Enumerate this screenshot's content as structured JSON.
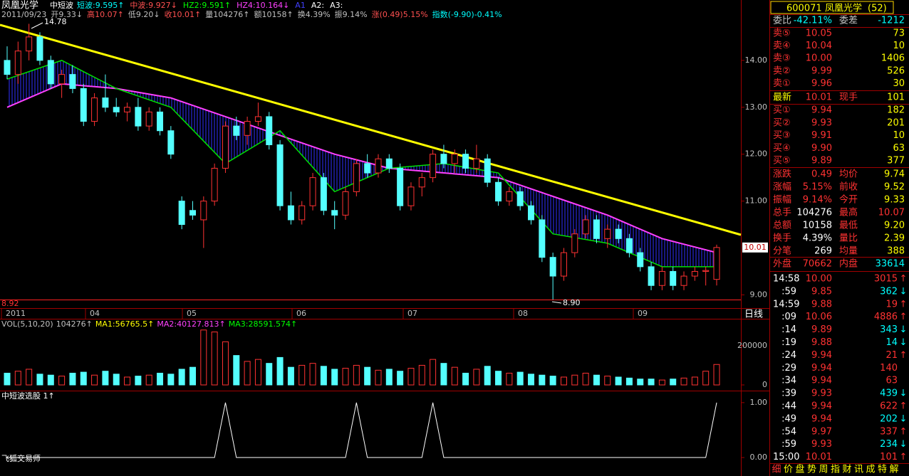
{
  "header": {
    "name": "凤凰光学",
    "indicator": "中短波",
    "items": [
      {
        "text": "短波:9.595↑",
        "color": "#00ffff"
      },
      {
        "text": "中波:9.927↓",
        "color": "#ff5050"
      },
      {
        "text": "HZ2:9.591↑",
        "color": "#00ff00"
      },
      {
        "text": "HZ4:10.164↓",
        "color": "#ff40ff"
      },
      {
        "text": "A1",
        "color": "#4040ff"
      },
      {
        "text": "A2:",
        "color": "#ffffff"
      },
      {
        "text": "A3:",
        "color": "#ffffff"
      }
    ],
    "row2": [
      {
        "text": "2011/09/23",
        "color": "#c0c0c0"
      },
      {
        "text": "开9.33↓",
        "color": "#c0c0c0"
      },
      {
        "text": "高10.07↑",
        "color": "#ff5050"
      },
      {
        "text": "低9.20↓",
        "color": "#c0c0c0"
      },
      {
        "text": "收10.01↑",
        "color": "#ff5050"
      },
      {
        "text": "量104276↑",
        "color": "#c0c0c0"
      },
      {
        "text": "额10158↑",
        "color": "#c0c0c0"
      },
      {
        "text": "换4.39%",
        "color": "#c0c0c0"
      },
      {
        "text": "振9.14%",
        "color": "#c0c0c0"
      },
      {
        "text": "涨(0.49)5.15%",
        "color": "#ff5050"
      },
      {
        "text": "指数(-9.90)-0.41%",
        "color": "#00ffff"
      }
    ]
  },
  "price_chart": {
    "ylim": [
      8.9,
      15.06
    ],
    "yticks": [
      {
        "value": 14,
        "label": "14.00"
      },
      {
        "value": 13,
        "label": "13.00"
      },
      {
        "value": 12,
        "label": "12.00"
      },
      {
        "value": 11,
        "label": "11.00"
      },
      {
        "value": 9,
        "label": "9.00"
      }
    ],
    "last_price": {
      "value": 10.01,
      "label": "10.01"
    },
    "high_label": "14.78",
    "low_label": "8.90",
    "bottom_label": "8.92",
    "dates": [
      "2011",
      "04",
      "05",
      "06",
      "07",
      "08",
      "09"
    ],
    "period": "日线",
    "candles": [
      [
        14.0,
        14.3,
        13.6,
        13.7
      ],
      [
        13.7,
        14.4,
        13.5,
        14.2
      ],
      [
        14.2,
        14.78,
        14.0,
        14.5
      ],
      [
        14.5,
        14.6,
        13.9,
        14.0
      ],
      [
        14.0,
        14.1,
        13.4,
        13.5
      ],
      [
        13.5,
        13.8,
        13.2,
        13.7
      ],
      [
        13.7,
        13.9,
        13.3,
        13.4
      ],
      [
        13.4,
        13.5,
        12.6,
        12.7
      ],
      [
        12.7,
        13.3,
        12.6,
        13.2
      ],
      [
        13.2,
        13.7,
        12.9,
        13.0
      ],
      [
        13.0,
        13.2,
        12.8,
        12.9
      ],
      [
        12.9,
        13.1,
        12.7,
        13.0
      ],
      [
        13.0,
        13.2,
        12.5,
        12.6
      ],
      [
        12.6,
        13.0,
        12.5,
        12.9
      ],
      [
        12.9,
        13.0,
        12.4,
        12.5
      ],
      [
        12.5,
        12.6,
        11.9,
        12.0
      ],
      [
        11.0,
        11.1,
        10.4,
        10.5
      ],
      [
        10.8,
        11.0,
        10.6,
        10.7
      ],
      [
        10.6,
        11.1,
        10.0,
        11.0
      ],
      [
        11.0,
        11.8,
        10.9,
        11.7
      ],
      [
        11.7,
        12.7,
        11.6,
        12.6
      ],
      [
        12.6,
        12.8,
        12.3,
        12.4
      ],
      [
        12.4,
        12.8,
        12.2,
        12.7
      ],
      [
        12.7,
        13.1,
        12.6,
        12.8
      ],
      [
        12.8,
        12.9,
        12.1,
        12.2
      ],
      [
        12.2,
        12.3,
        10.8,
        10.9
      ],
      [
        10.9,
        11.2,
        10.5,
        10.6
      ],
      [
        10.6,
        11.0,
        10.5,
        10.9
      ],
      [
        10.9,
        11.6,
        10.8,
        11.5
      ],
      [
        11.5,
        11.6,
        10.7,
        10.8
      ],
      [
        10.8,
        11.0,
        10.4,
        10.7
      ],
      [
        10.7,
        11.3,
        10.6,
        11.2
      ],
      [
        11.2,
        11.9,
        11.1,
        11.8
      ],
      [
        11.8,
        12.0,
        11.5,
        11.6
      ],
      [
        11.6,
        12.0,
        11.5,
        11.9
      ],
      [
        11.9,
        12.0,
        11.6,
        11.7
      ],
      [
        11.7,
        11.8,
        10.8,
        10.9
      ],
      [
        10.9,
        11.4,
        10.8,
        11.3
      ],
      [
        11.3,
        11.6,
        11.1,
        11.5
      ],
      [
        11.5,
        12.1,
        11.4,
        12.0
      ],
      [
        12.0,
        12.2,
        11.7,
        11.8
      ],
      [
        11.8,
        12.1,
        11.6,
        12.0
      ],
      [
        12.0,
        12.1,
        11.6,
        11.7
      ],
      [
        11.7,
        12.2,
        11.6,
        11.9
      ],
      [
        11.9,
        12.0,
        11.3,
        11.4
      ],
      [
        11.4,
        11.5,
        10.9,
        11.0
      ],
      [
        11.0,
        11.3,
        10.9,
        11.2
      ],
      [
        11.2,
        11.3,
        10.8,
        10.9
      ],
      [
        10.9,
        11.0,
        10.5,
        10.6
      ],
      [
        10.6,
        10.7,
        9.7,
        9.8
      ],
      [
        9.8,
        9.9,
        8.9,
        9.4
      ],
      [
        9.4,
        10.0,
        9.3,
        9.9
      ],
      [
        9.9,
        10.4,
        9.8,
        10.3
      ],
      [
        10.3,
        10.7,
        10.2,
        10.6
      ],
      [
        10.6,
        10.7,
        10.1,
        10.2
      ],
      [
        10.2,
        10.5,
        10.0,
        10.4
      ],
      [
        10.4,
        10.5,
        10.1,
        10.2
      ],
      [
        10.2,
        10.3,
        9.8,
        9.9
      ],
      [
        9.9,
        10.0,
        9.5,
        9.6
      ],
      [
        9.6,
        9.7,
        9.1,
        9.2
      ],
      [
        9.2,
        9.6,
        9.1,
        9.5
      ],
      [
        9.5,
        9.6,
        9.1,
        9.2
      ],
      [
        9.2,
        9.5,
        9.1,
        9.4
      ],
      [
        9.4,
        9.6,
        9.3,
        9.5
      ],
      [
        9.5,
        9.6,
        9.2,
        9.52
      ],
      [
        9.33,
        10.07,
        9.2,
        10.01
      ]
    ],
    "ma_x": [
      0,
      5,
      10,
      15,
      20,
      25,
      30,
      35,
      40,
      45,
      50,
      55,
      60,
      65
    ],
    "ma_fast": [
      13.6,
      14.0,
      13.4,
      13.0,
      11.8,
      12.5,
      11.2,
      11.7,
      11.8,
      11.6,
      10.3,
      10.1,
      9.6,
      9.6
    ],
    "ma_slow": [
      13.0,
      13.5,
      13.4,
      13.2,
      12.8,
      12.4,
      12.0,
      11.7,
      11.6,
      11.5,
      11.1,
      10.7,
      10.2,
      9.9
    ]
  },
  "volume": {
    "ylim": [
      0,
      330000
    ],
    "yticks": [
      0,
      200000
    ],
    "items": [
      {
        "text": "VOL(5,10,20)",
        "color": "#c0c0c0"
      },
      {
        "text": "104276↑",
        "color": "#c0c0c0"
      },
      {
        "text": "MA1:56765.5↑",
        "color": "#ffff00"
      },
      {
        "text": "MA2:40127.813↑",
        "color": "#ff40ff"
      },
      {
        "text": "MA3:28591.574↑",
        "color": "#00ff00"
      }
    ],
    "values": [
      60000,
      70000,
      80000,
      55000,
      50000,
      45000,
      60000,
      65000,
      50000,
      70000,
      55000,
      40000,
      45000,
      50000,
      60000,
      55000,
      80000,
      90000,
      280000,
      270000,
      220000,
      150000,
      120000,
      130000,
      110000,
      140000,
      90000,
      100000,
      110000,
      95000,
      80000,
      85000,
      100000,
      90000,
      75000,
      80000,
      70000,
      85000,
      100000,
      130000,
      110000,
      90000,
      60000,
      80000,
      95000,
      70000,
      60000,
      65000,
      55000,
      50000,
      45000,
      40000,
      50000,
      60000,
      50000,
      45000,
      40000,
      35000,
      30000,
      30000,
      25000,
      30000,
      35000,
      40000,
      70000,
      104276
    ]
  },
  "indicator": {
    "title": "中短波选股 1↑",
    "ylim": [
      -0.09,
      1.18
    ],
    "yticks": [
      {
        "value": 1,
        "label": "1.00"
      },
      {
        "value": 0,
        "label": "0.00"
      }
    ],
    "values": [
      0,
      0,
      0,
      0,
      0,
      0,
      0,
      0,
      0,
      0,
      0,
      0,
      0,
      0,
      0,
      0,
      0,
      0,
      0,
      0,
      1,
      0,
      0,
      0,
      0,
      0,
      0,
      0,
      0,
      0,
      0,
      0,
      1,
      0,
      0,
      0,
      0,
      0,
      0,
      1,
      0,
      0,
      0,
      0,
      0,
      0,
      0,
      0,
      0,
      0,
      0,
      0,
      0,
      0,
      0,
      0,
      0,
      0,
      0,
      0,
      0,
      0,
      0,
      0,
      0,
      1
    ]
  },
  "watermark": "飞狐交易师",
  "quote": {
    "code": "600071",
    "name": "凤凰光学",
    "suffix": "(52)",
    "ratio": [
      "委比",
      "-42.11%",
      "委差",
      "-1212"
    ],
    "sells": [
      [
        "卖⑤",
        "10.05",
        "73"
      ],
      [
        "卖④",
        "10.04",
        "10"
      ],
      [
        "卖③",
        "10.00",
        "1406"
      ],
      [
        "卖②",
        "9.99",
        "526"
      ],
      [
        "卖①",
        "9.96",
        "30"
      ]
    ],
    "last": [
      "最新",
      "10.01",
      "现手",
      "101"
    ],
    "buys": [
      [
        "买①",
        "9.94",
        "182"
      ],
      [
        "买②",
        "9.93",
        "201"
      ],
      [
        "买③",
        "9.91",
        "10"
      ],
      [
        "买④",
        "9.90",
        "63"
      ],
      [
        "买⑤",
        "9.89",
        "377"
      ]
    ],
    "stats": [
      [
        "涨跌",
        "0.49",
        "均价",
        "9.74"
      ],
      [
        "涨幅",
        "5.15%",
        "前收",
        "9.52"
      ],
      [
        "振幅",
        "9.14%",
        "今开",
        "9.33"
      ],
      [
        "总手",
        "104276",
        "最高",
        "10.07"
      ],
      [
        "总额",
        "10158",
        "最低",
        "9.20"
      ],
      [
        "换手",
        "4.39%",
        "量比",
        "2.39"
      ],
      [
        "分笔",
        "269",
        "均量",
        "388"
      ]
    ],
    "outer_inner": [
      "外盘",
      "70662",
      "内盘",
      "33614"
    ],
    "trades": [
      [
        "14:58",
        "10.00",
        "3015",
        "↑"
      ],
      [
        ":59",
        "9.85",
        "362",
        "↓"
      ],
      [
        "14:59",
        "9.88",
        "19",
        "↑"
      ],
      [
        ":09",
        "10.06",
        "4886",
        "↑"
      ],
      [
        ":14",
        "9.89",
        "343",
        "↓"
      ],
      [
        ":19",
        "9.88",
        "14",
        "↓"
      ],
      [
        ":24",
        "9.94",
        "21",
        "↑"
      ],
      [
        ":29",
        "9.94",
        "140"
      ],
      [
        ":34",
        "9.94",
        "63"
      ],
      [
        ":39",
        "9.93",
        "439",
        "↓"
      ],
      [
        ":44",
        "9.94",
        "622",
        "↑"
      ],
      [
        ":49",
        "9.94",
        "202",
        "↓"
      ],
      [
        ":54",
        "9.97",
        "337",
        "↑"
      ],
      [
        ":59",
        "9.93",
        "234",
        "↓"
      ],
      [
        "15:00",
        "10.01",
        "101",
        "↑"
      ]
    ],
    "tabs": [
      "细",
      "价",
      "盘",
      "势",
      "周",
      "指",
      "财",
      "讯",
      "成",
      "特",
      "解"
    ]
  }
}
